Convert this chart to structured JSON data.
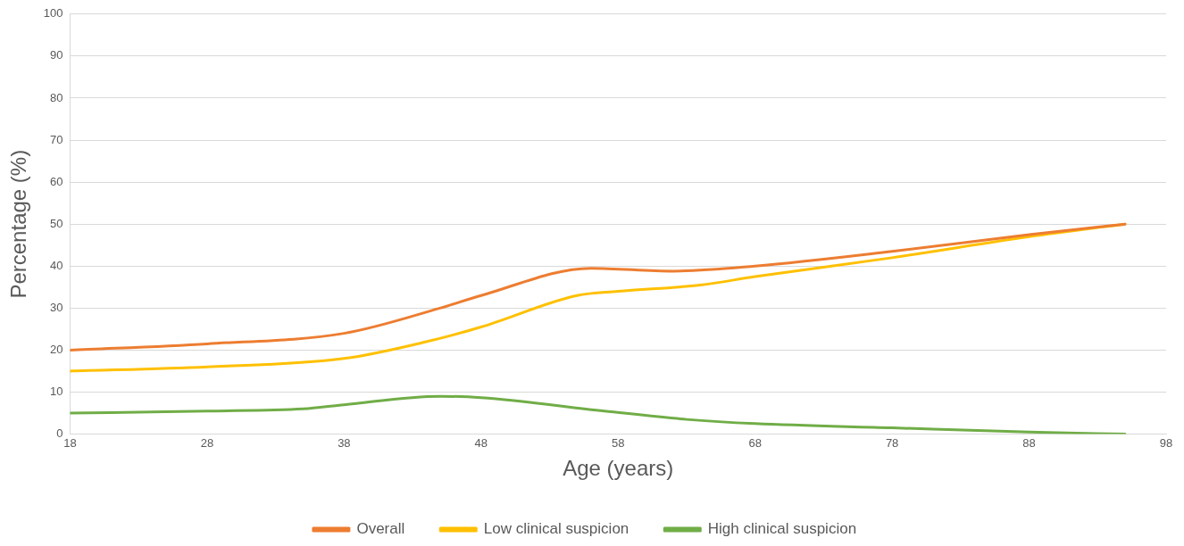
{
  "chart_data": {
    "type": "line",
    "xlabel": "Age (years)",
    "ylabel": "Percentage (%)",
    "xlim": [
      18,
      98
    ],
    "xticks": [
      18,
      28,
      38,
      48,
      58,
      68,
      78,
      88,
      98
    ],
    "ylim": [
      0,
      100
    ],
    "yticks": [
      0,
      10,
      20,
      30,
      40,
      50,
      60,
      70,
      80,
      90,
      100
    ],
    "grid": "y",
    "legend": "bottom",
    "marker": "none",
    "line_style": "solid",
    "series": [
      {
        "name": "Overall",
        "color": "#ed7d31",
        "x": [
          18,
          28,
          38,
          45,
          48,
          56,
          62,
          68,
          78,
          88,
          95
        ],
        "values": [
          20,
          21.5,
          24,
          30,
          33,
          39.5,
          38.8,
          40,
          43.5,
          47.5,
          50
        ]
      },
      {
        "name": "Low clinical suspicion",
        "color": "#ffc000",
        "x": [
          18,
          28,
          38,
          44,
          48,
          55,
          58,
          64,
          68,
          78,
          88,
          95
        ],
        "values": [
          15,
          16,
          18,
          22,
          25.5,
          33,
          34,
          35.5,
          37.5,
          42,
          47,
          50
        ]
      },
      {
        "name": "High clinical suspicion",
        "color": "#70ad47",
        "x": [
          18,
          28,
          35,
          38,
          45,
          48,
          57,
          63,
          68,
          78,
          88,
          95
        ],
        "values": [
          5,
          5.5,
          6,
          7,
          9,
          8.7,
          5.5,
          3.5,
          2.5,
          1.5,
          0.5,
          0
        ]
      }
    ]
  }
}
